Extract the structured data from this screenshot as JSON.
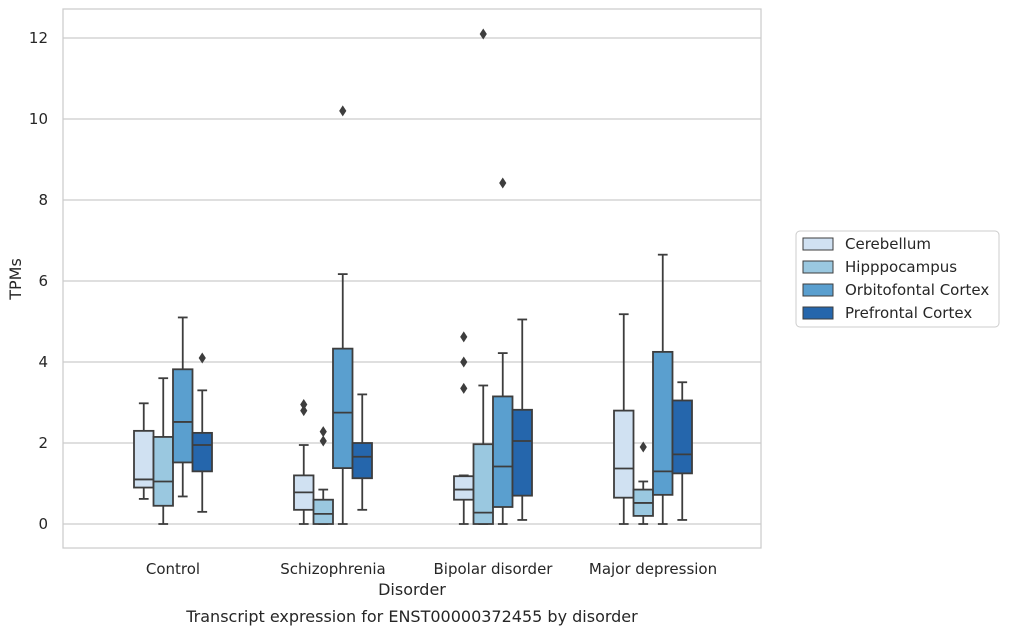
{
  "chart_data": {
    "type": "box",
    "title": "",
    "caption": "Transcript expression for ENST00000372455 by disorder",
    "xlabel": "Disorder",
    "ylabel": "TPMs",
    "ylim": [
      -0.6,
      12.7
    ],
    "yticks": [
      0,
      2,
      4,
      6,
      8,
      10,
      12
    ],
    "grid": "horizontal",
    "legend_placement": "right",
    "categories": [
      "Control",
      "Schizophrenia",
      "Bipolar disorder",
      "Major depression"
    ],
    "series": [
      {
        "name": "Cerebellum",
        "color": "#d0e1f2",
        "boxes": [
          {
            "whislo": 0.62,
            "q1": 0.9,
            "med": 1.1,
            "q3": 2.3,
            "whishi": 2.98,
            "fliers": []
          },
          {
            "whislo": 0.0,
            "q1": 0.35,
            "med": 0.78,
            "q3": 1.2,
            "whishi": 1.95,
            "fliers": [
              2.8,
              2.95
            ]
          },
          {
            "whislo": 0.0,
            "q1": 0.6,
            "med": 0.85,
            "q3": 1.18,
            "whishi": 1.2,
            "fliers": [
              3.35,
              4.0,
              4.62
            ]
          },
          {
            "whislo": 0.0,
            "q1": 0.65,
            "med": 1.37,
            "q3": 2.8,
            "whishi": 5.18,
            "fliers": []
          }
        ]
      },
      {
        "name": "Hipppocampus",
        "color": "#9ac8e0",
        "boxes": [
          {
            "whislo": 0.0,
            "q1": 0.45,
            "med": 1.05,
            "q3": 2.15,
            "whishi": 3.6,
            "fliers": []
          },
          {
            "whislo": 0.0,
            "q1": 0.0,
            "med": 0.25,
            "q3": 0.6,
            "whishi": 0.85,
            "fliers": [
              2.05,
              2.28
            ]
          },
          {
            "whislo": 0.0,
            "q1": 0.0,
            "med": 0.28,
            "q3": 1.97,
            "whishi": 3.42,
            "fliers": [
              12.1
            ]
          },
          {
            "whislo": 0.0,
            "q1": 0.2,
            "med": 0.52,
            "q3": 0.85,
            "whishi": 1.05,
            "fliers": [
              1.9
            ]
          }
        ]
      },
      {
        "name": "Orbitofontal Cortex",
        "color": "#5a9fcf",
        "boxes": [
          {
            "whislo": 0.68,
            "q1": 1.52,
            "med": 2.52,
            "q3": 3.82,
            "whishi": 5.1,
            "fliers": []
          },
          {
            "whislo": 0.0,
            "q1": 1.38,
            "med": 2.75,
            "q3": 4.33,
            "whishi": 6.17,
            "fliers": [
              10.2
            ]
          },
          {
            "whislo": 0.0,
            "q1": 0.42,
            "med": 1.42,
            "q3": 3.15,
            "whishi": 4.22,
            "fliers": [
              8.42
            ]
          },
          {
            "whislo": 0.0,
            "q1": 0.72,
            "med": 1.3,
            "q3": 4.25,
            "whishi": 6.65,
            "fliers": []
          }
        ]
      },
      {
        "name": "Prefrontal Cortex",
        "color": "#2566ac",
        "boxes": [
          {
            "whislo": 0.3,
            "q1": 1.3,
            "med": 1.95,
            "q3": 2.25,
            "whishi": 3.3,
            "fliers": [
              4.1
            ]
          },
          {
            "whislo": 0.35,
            "q1": 1.13,
            "med": 1.66,
            "q3": 2.0,
            "whishi": 3.2,
            "fliers": []
          },
          {
            "whislo": 0.1,
            "q1": 0.7,
            "med": 2.05,
            "q3": 2.82,
            "whishi": 5.05,
            "fliers": []
          },
          {
            "whislo": 0.1,
            "q1": 1.25,
            "med": 1.72,
            "q3": 3.05,
            "whishi": 3.5,
            "fliers": []
          }
        ]
      }
    ]
  }
}
